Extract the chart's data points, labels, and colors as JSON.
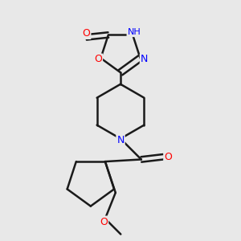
{
  "background_color": "#e8e8e8",
  "bond_color": "#1a1a1a",
  "atom_colors": {
    "O": "#ff0000",
    "N": "#0000ff",
    "H": "#20b2aa",
    "C": "#1a1a1a"
  },
  "figsize": [
    3.0,
    3.0
  ],
  "dpi": 100
}
